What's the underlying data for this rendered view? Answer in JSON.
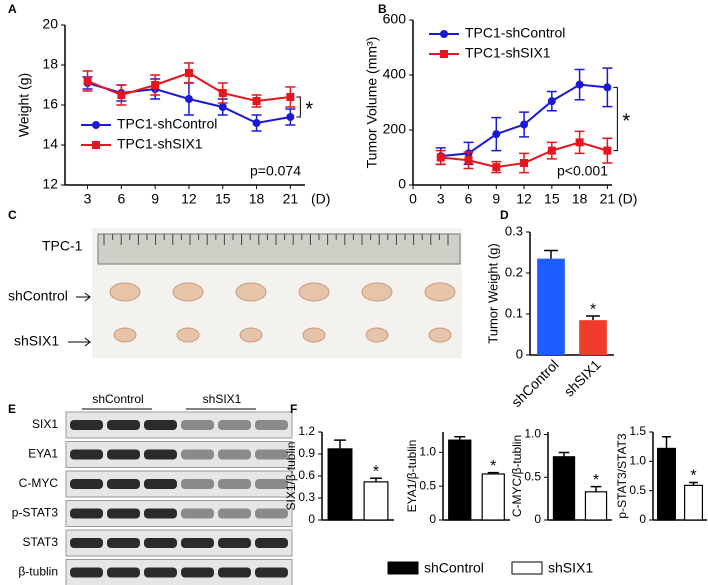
{
  "chart_data": [
    {
      "type": "line",
      "panel_label": "A",
      "ylabel": "Weight (g)",
      "xlabel": "(D)",
      "x": [
        3,
        6,
        9,
        12,
        15,
        18,
        21
      ],
      "xlim": [
        1,
        22.3
      ],
      "xticks": [
        3,
        6,
        9,
        12,
        15,
        18,
        21
      ],
      "ylim": [
        12,
        20
      ],
      "yticks": [
        12,
        14,
        16,
        18,
        20
      ],
      "legend": "lower left",
      "series": [
        {
          "name": "TPC1-shControl",
          "color": "#1a1ad6",
          "marker": "circle",
          "values": [
            17.1,
            16.6,
            16.8,
            16.3,
            15.9,
            15.1,
            15.4
          ],
          "errors": [
            0.3,
            0.4,
            0.5,
            0.8,
            0.4,
            0.4,
            0.4
          ]
        },
        {
          "name": "TPC1-shSIX1",
          "color": "#e8141e",
          "marker": "square",
          "values": [
            17.2,
            16.5,
            17.0,
            17.6,
            16.6,
            16.2,
            16.4
          ],
          "errors": [
            0.5,
            0.5,
            0.5,
            0.5,
            0.5,
            0.3,
            0.5
          ]
        }
      ],
      "p_value": "p=0.074",
      "significance": "*"
    },
    {
      "type": "line",
      "panel_label": "B",
      "ylabel": "Tumor Volume (mm³)",
      "xlabel": "(D)",
      "x": [
        3,
        6,
        9,
        12,
        15,
        18,
        21
      ],
      "xlim": [
        0,
        21.5
      ],
      "xticks": [
        0,
        3,
        6,
        9,
        12,
        15,
        18,
        21
      ],
      "ylim": [
        0,
        600
      ],
      "yticks": [
        0,
        200,
        400,
        600
      ],
      "legend": "upper left",
      "series": [
        {
          "name": "TPC1-shControl",
          "color": "#1a1ad6",
          "marker": "circle",
          "values": [
            105,
            115,
            185,
            220,
            305,
            365,
            355
          ],
          "errors": [
            30,
            40,
            60,
            45,
            35,
            55,
            70
          ]
        },
        {
          "name": "TPC1-shSIX1",
          "color": "#e8141e",
          "marker": "square",
          "values": [
            100,
            90,
            65,
            80,
            125,
            155,
            125
          ],
          "errors": [
            25,
            30,
            20,
            35,
            30,
            40,
            45
          ]
        }
      ],
      "p_value": "p<0.001",
      "significance": "*"
    },
    {
      "type": "bar",
      "panel_label": "D",
      "ylabel": "Tumor Weight (g)",
      "categories": [
        "shControl",
        "shSIX1"
      ],
      "values": [
        0.235,
        0.085
      ],
      "errors": [
        0.02,
        0.01
      ],
      "colors": [
        "#1f5cff",
        "#f03c2a"
      ],
      "ylim": [
        0,
        0.3
      ],
      "yticks": [
        0,
        0.1,
        0.2,
        0.3
      ],
      "significance": "*"
    },
    {
      "type": "bar",
      "panel_label": "F",
      "ylabel": "SIX1/β-tublin",
      "values": [
        0.97,
        0.52
      ],
      "errors": [
        0.12,
        0.05
      ],
      "ylim": [
        0,
        1.2
      ],
      "yticks": [
        0,
        0.3,
        0.6,
        0.9,
        1.2
      ],
      "significance": "*"
    },
    {
      "type": "bar",
      "ylabel": "EYA1/β-tublin",
      "values": [
        1.18,
        0.68
      ],
      "errors": [
        0.05,
        0.02
      ],
      "ylim": [
        0,
        1.3
      ],
      "yticks": [
        0,
        0.5,
        {
          "value": 1,
          "label": "1.0"
        }
      ],
      "significance": "*"
    },
    {
      "type": "bar",
      "ylabel": "C-MYC/β-tublin",
      "values": [
        0.74,
        0.33
      ],
      "errors": [
        0.05,
        0.06
      ],
      "ylim": [
        0,
        1.03
      ],
      "yticks": [
        0,
        0.5,
        {
          "value": 1,
          "label": "1.0"
        }
      ],
      "significance": "*"
    },
    {
      "type": "bar",
      "ylabel": "p-STAT3/STAT3",
      "values": [
        1.22,
        0.59
      ],
      "errors": [
        0.2,
        0.05
      ],
      "ylim": [
        0,
        1.5
      ],
      "yticks": [
        0,
        0.5,
        {
          "value": 1,
          "label": "1.0"
        },
        1.5
      ],
      "significance": "*"
    }
  ],
  "legend": {
    "entries": [
      {
        "name": "shControl",
        "color": "#000000"
      },
      {
        "name": "shSIX1",
        "color": "#ffffff"
      }
    ]
  },
  "photo": {
    "panel_label": "C",
    "title": "TPC-1",
    "rows": [
      "shControl",
      "shSIX1"
    ]
  },
  "blot": {
    "panel_label": "E",
    "groups": [
      "shControl",
      "shSIX1"
    ],
    "rows": [
      "SIX1",
      "EYA1",
      "C-MYC",
      "p-STAT3",
      "STAT3",
      "β-tublin"
    ]
  }
}
